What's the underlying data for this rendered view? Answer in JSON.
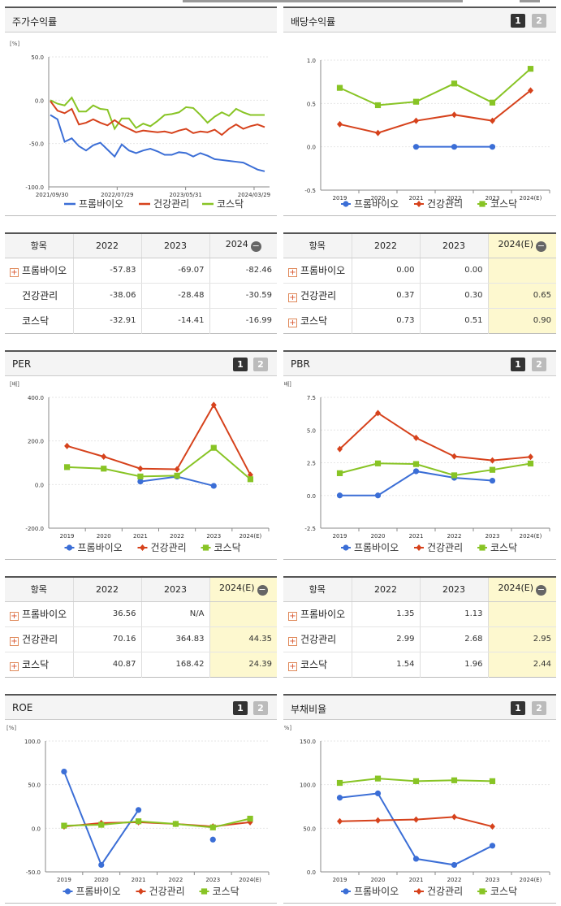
{
  "colors": {
    "blue": "#3b6ed6",
    "red": "#d6421c",
    "green": "#88c425"
  },
  "legend": [
    "프롬바이오",
    "건강관리",
    "코스닥"
  ],
  "stock": {
    "title": "주가수익률",
    "unit": "[%]",
    "yticks": [
      "50.0",
      "0.0",
      "-50.0",
      "-100.0"
    ],
    "xticks": [
      "2021/09/30",
      "2022/07/29",
      "2023/05/31",
      "2024/03/29"
    ],
    "chart_data": {
      "type": "line",
      "ylim": [
        -100,
        50
      ],
      "series": [
        {
          "name": "프롬바이오",
          "values": [
            -17,
            -22,
            -48,
            -44,
            -53,
            -58,
            -52,
            -49,
            -57,
            -65,
            -51,
            -58,
            -61,
            -58,
            -56,
            -59,
            -63,
            -63,
            -60,
            -61,
            -65,
            -61,
            -64,
            -68,
            -69,
            -70,
            -71,
            -72,
            -76,
            -80,
            -82
          ]
        },
        {
          "name": "건강관리",
          "values": [
            -1,
            -12,
            -15,
            -10,
            -28,
            -26,
            -22,
            -26,
            -29,
            -23,
            -29,
            -33,
            -37,
            -35,
            -36,
            -37,
            -36,
            -38,
            -35,
            -33,
            -38,
            -36,
            -37,
            -34,
            -40,
            -33,
            -28,
            -33,
            -30,
            -28,
            -31
          ]
        },
        {
          "name": "코스닥",
          "values": [
            0,
            -4,
            -6,
            3,
            -13,
            -13,
            -6,
            -10,
            -11,
            -33,
            -21,
            -21,
            -32,
            -27,
            -30,
            -24,
            -17,
            -16,
            -14,
            -8,
            -9,
            -17,
            -26,
            -19,
            -14,
            -18,
            -10,
            -14,
            -17,
            -17,
            -17
          ]
        }
      ]
    }
  },
  "dividend": {
    "title": "배당수익률",
    "btn1": "1",
    "btn2": "2",
    "yticks": [
      "1.0",
      "0.5",
      "0.0",
      "-0.5"
    ],
    "chart_data": {
      "type": "line",
      "categories": [
        "2019",
        "2020",
        "2021",
        "2022",
        "2023",
        "2024(E)"
      ],
      "ylim": [
        -0.5,
        1.0
      ],
      "series": [
        {
          "name": "프롬바이오",
          "values": [
            null,
            null,
            0.0,
            0.0,
            0.0,
            null
          ]
        },
        {
          "name": "건강관리",
          "values": [
            0.26,
            0.16,
            0.3,
            0.37,
            0.3,
            0.65
          ]
        },
        {
          "name": "코스닥",
          "values": [
            0.68,
            0.48,
            0.52,
            0.73,
            0.51,
            0.9
          ]
        }
      ]
    }
  },
  "per": {
    "title": "PER",
    "btn1": "1",
    "btn2": "2",
    "unit": "[배]",
    "yticks": [
      "400.0",
      "200.0",
      "0.0",
      "-200.0"
    ],
    "chart_data": {
      "type": "line",
      "categories": [
        "2019",
        "2020",
        "2021",
        "2022",
        "2023",
        "2024(E)"
      ],
      "ylim": [
        -200,
        400
      ],
      "series": [
        {
          "name": "프롬바이오",
          "values": [
            null,
            null,
            14,
            36.56,
            -6,
            null
          ]
        },
        {
          "name": "건강관리",
          "values": [
            177,
            128,
            73,
            70.16,
            364.83,
            44.35
          ]
        },
        {
          "name": "코스닥",
          "values": [
            80,
            73,
            37,
            40.87,
            168.42,
            24.39
          ]
        }
      ]
    }
  },
  "pbr": {
    "title": "PBR",
    "btn1": "1",
    "btn2": "2",
    "unit": "[배]",
    "yticks": [
      "7.5",
      "5.0",
      "2.5",
      "0.0",
      "-2.5"
    ],
    "chart_data": {
      "type": "line",
      "categories": [
        "2019",
        "2020",
        "2021",
        "2022",
        "2023",
        "2024(E)"
      ],
      "ylim": [
        -2.5,
        7.5
      ],
      "series": [
        {
          "name": "프롬바이오",
          "values": [
            0.0,
            0.0,
            1.85,
            1.35,
            1.13,
            null
          ]
        },
        {
          "name": "건강관리",
          "values": [
            3.55,
            6.3,
            4.4,
            2.99,
            2.68,
            2.95
          ]
        },
        {
          "name": "코스닥",
          "values": [
            1.7,
            2.45,
            2.4,
            1.54,
            1.96,
            2.44
          ]
        }
      ]
    }
  },
  "roe": {
    "title": "ROE",
    "btn1": "1",
    "btn2": "2",
    "unit": "[%]",
    "yticks": [
      "100.0",
      "50.0",
      "0.0",
      "-50.0"
    ],
    "chart_data": {
      "type": "line",
      "categories": [
        "2019",
        "2020",
        "2021",
        "2022",
        "2023",
        "2024(E)"
      ],
      "ylim": [
        -50,
        100
      ],
      "series": [
        {
          "name": "프롬바이오",
          "values": [
            65,
            -42,
            21,
            null,
            -13,
            null
          ]
        },
        {
          "name": "건강관리",
          "values": [
            2,
            6,
            7,
            5,
            2,
            7
          ]
        },
        {
          "name": "코스닥",
          "values": [
            3,
            4,
            8,
            5,
            1,
            11
          ]
        }
      ]
    }
  },
  "debt": {
    "title": "부채비율",
    "btn1": "1",
    "btn2": "2",
    "unit": "[%]",
    "yticks": [
      "150.0",
      "100.0",
      "50.0",
      "0.0"
    ],
    "chart_data": {
      "type": "line",
      "categories": [
        "2019",
        "2020",
        "2021",
        "2022",
        "2023",
        "2024(E)"
      ],
      "ylim": [
        0,
        150
      ],
      "series": [
        {
          "name": "프롬바이오",
          "values": [
            85,
            90,
            15,
            8,
            30,
            null
          ]
        },
        {
          "name": "건강관리",
          "values": [
            58,
            59,
            60,
            63,
            52,
            null
          ]
        },
        {
          "name": "코스닥",
          "values": [
            102,
            107,
            104,
            105,
            104,
            null
          ]
        }
      ]
    }
  },
  "tables": {
    "stock": {
      "headers": [
        "항목",
        "2022",
        "2023",
        "2024"
      ],
      "rows": [
        {
          "name": "프롬바이오",
          "vals": [
            "-57.83",
            "-69.07",
            "-82.46"
          ]
        },
        {
          "name": "건강관리",
          "vals": [
            "-38.06",
            "-28.48",
            "-30.59"
          ]
        },
        {
          "name": "코스닥",
          "vals": [
            "-32.91",
            "-14.41",
            "-16.99"
          ]
        }
      ]
    },
    "dividend": {
      "headers": [
        "항목",
        "2022",
        "2023",
        "2024(E)"
      ],
      "rows": [
        {
          "name": "프롬바이오",
          "vals": [
            "0.00",
            "0.00",
            ""
          ]
        },
        {
          "name": "건강관리",
          "vals": [
            "0.37",
            "0.30",
            "0.65"
          ]
        },
        {
          "name": "코스닥",
          "vals": [
            "0.73",
            "0.51",
            "0.90"
          ]
        }
      ]
    },
    "per": {
      "headers": [
        "항목",
        "2022",
        "2023",
        "2024(E)"
      ],
      "rows": [
        {
          "name": "프롬바이오",
          "vals": [
            "36.56",
            "N/A",
            ""
          ]
        },
        {
          "name": "건강관리",
          "vals": [
            "70.16",
            "364.83",
            "44.35"
          ]
        },
        {
          "name": "코스닥",
          "vals": [
            "40.87",
            "168.42",
            "24.39"
          ]
        }
      ]
    },
    "pbr": {
      "headers": [
        "항목",
        "2022",
        "2023",
        "2024(E)"
      ],
      "rows": [
        {
          "name": "프롬바이오",
          "vals": [
            "1.35",
            "1.13",
            ""
          ]
        },
        {
          "name": "건강관리",
          "vals": [
            "2.99",
            "2.68",
            "2.95"
          ]
        },
        {
          "name": "코스닥",
          "vals": [
            "1.54",
            "1.96",
            "2.44"
          ]
        }
      ]
    }
  }
}
